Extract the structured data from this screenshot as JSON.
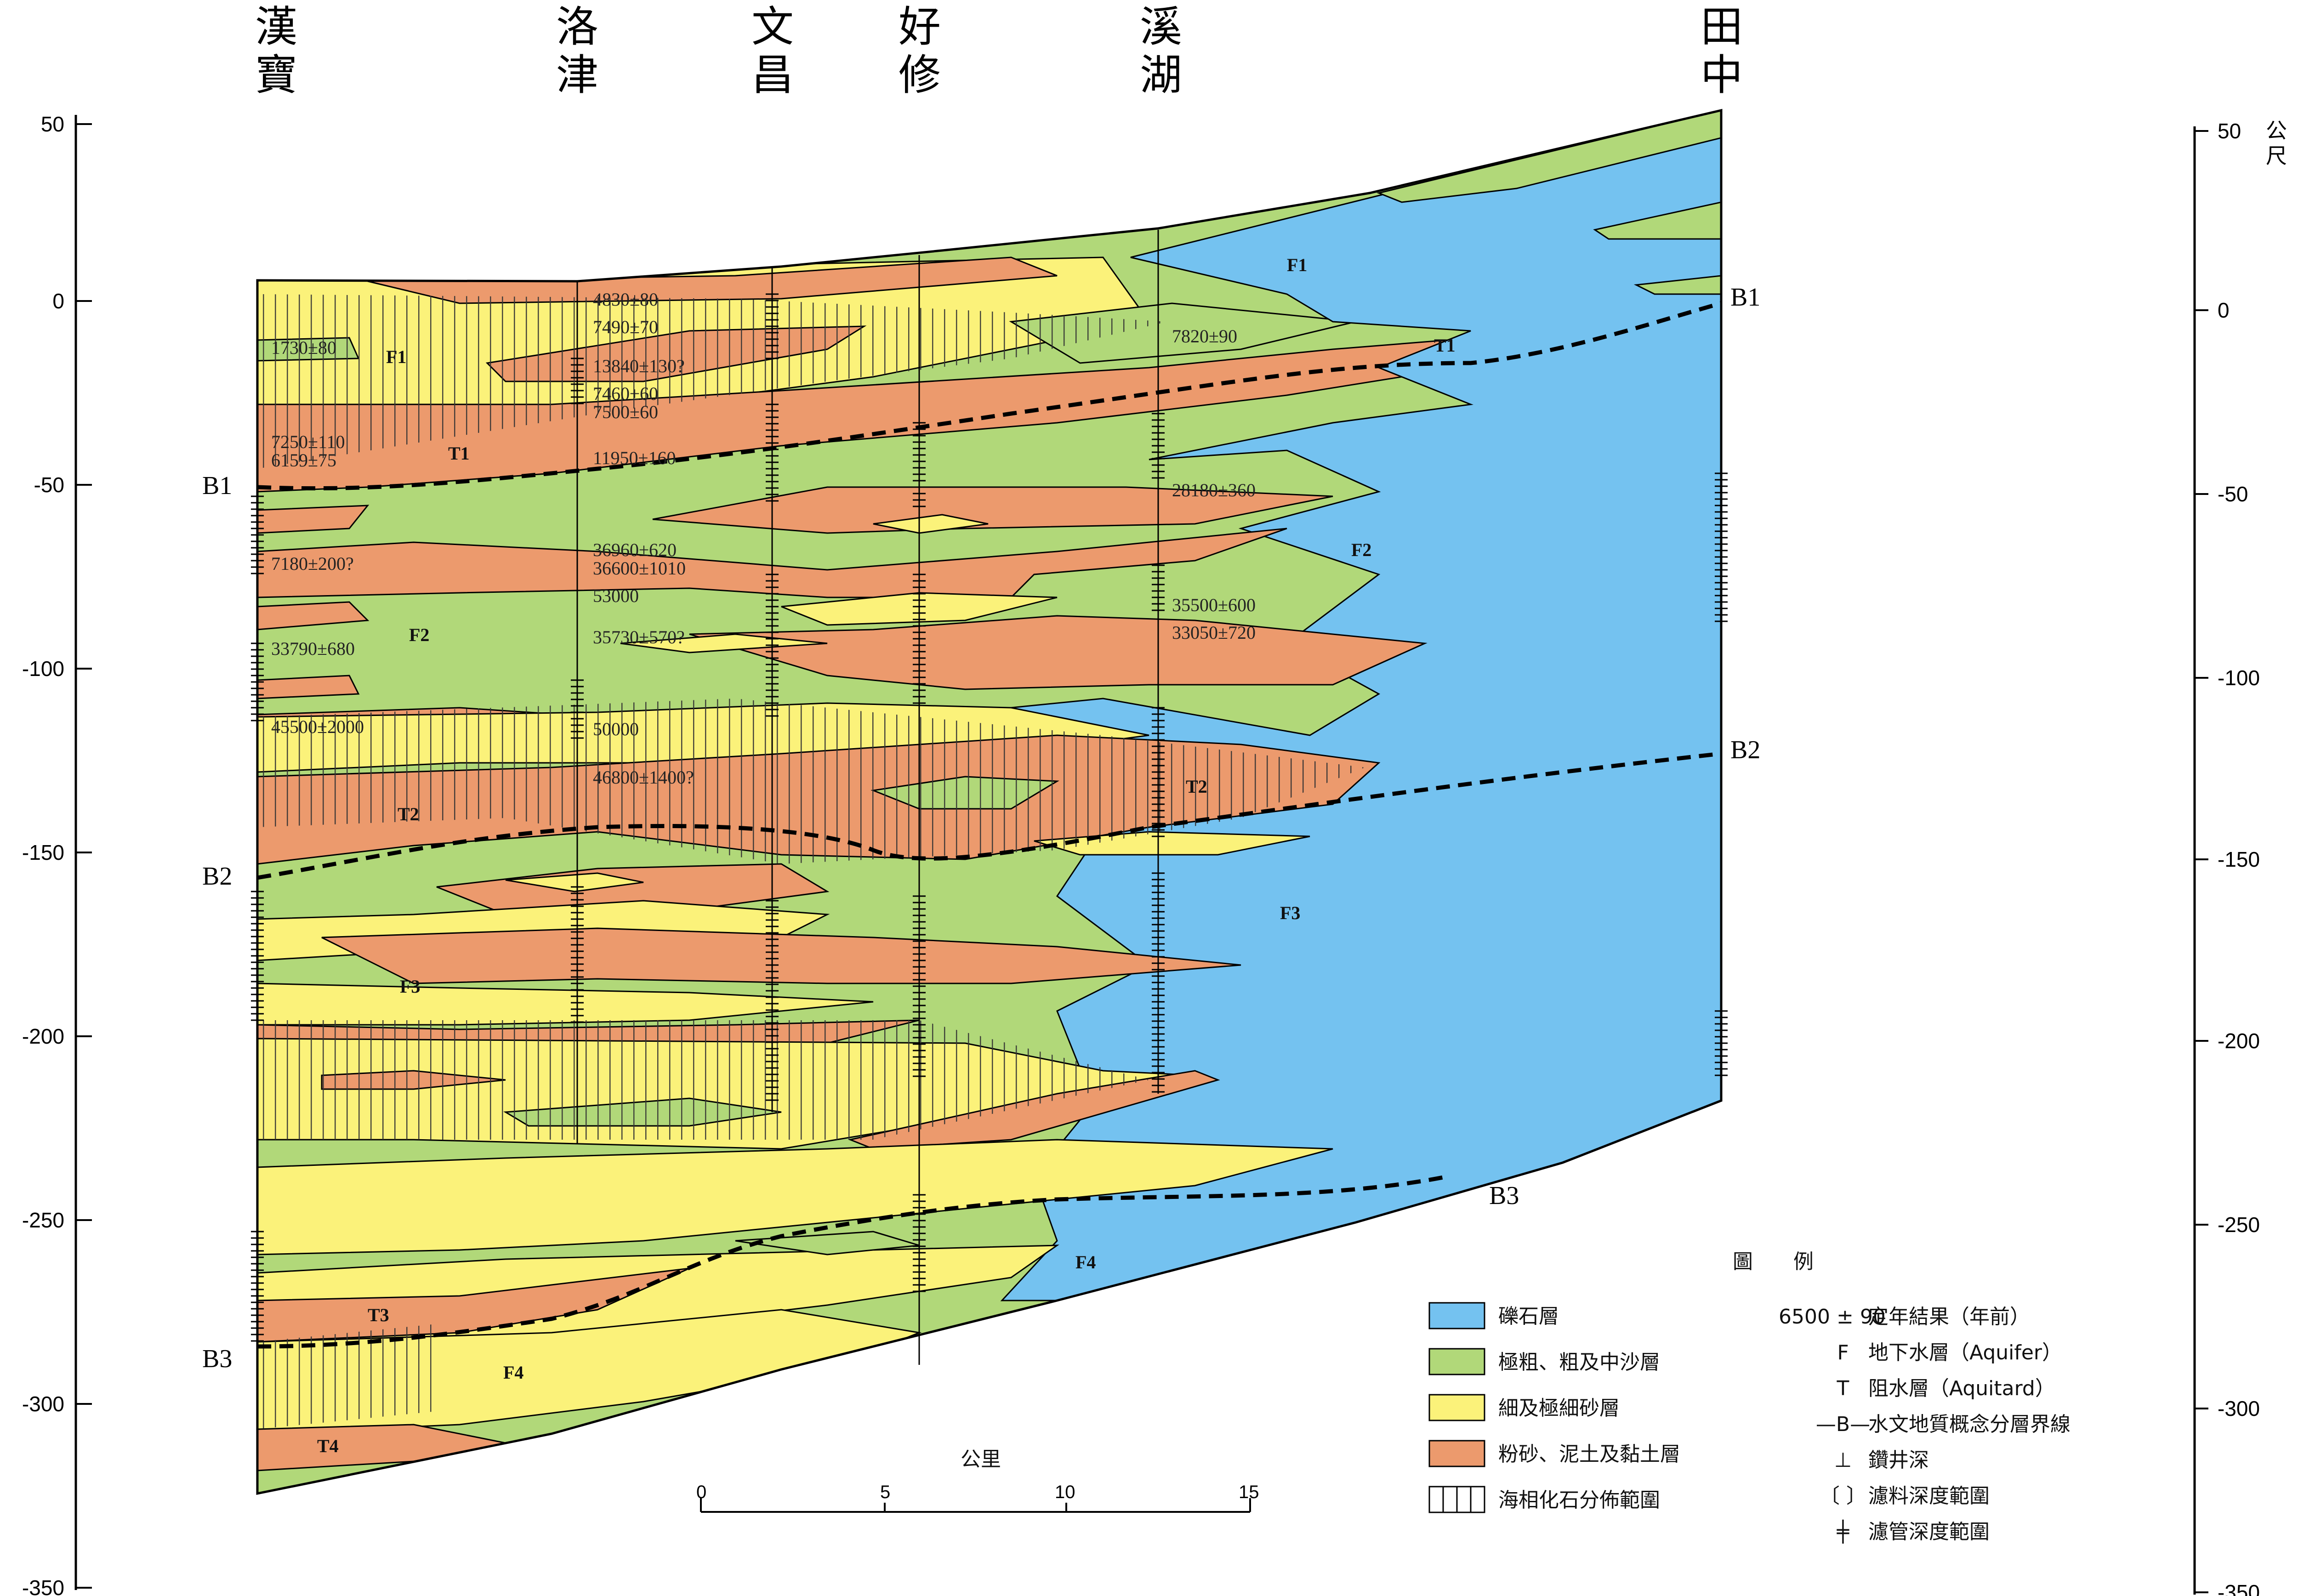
{
  "stations": [
    {
      "id": "hanbao",
      "name": "漢寶"
    },
    {
      "id": "luojin",
      "name": "洛津"
    },
    {
      "id": "wenchang",
      "name": "文昌"
    },
    {
      "id": "haoxiu",
      "name": "好修"
    },
    {
      "id": "xihu",
      "name": "溪湖"
    },
    {
      "id": "tianzhong",
      "name": "田中"
    }
  ],
  "axis": {
    "unit": "公尺",
    "ticks": [
      "50",
      "0",
      "-50",
      "-100",
      "-150",
      "-200",
      "-250",
      "-300",
      "-350"
    ]
  },
  "units": [
    {
      "id": "F1",
      "label": "F1"
    },
    {
      "id": "F1b",
      "label": "F1"
    },
    {
      "id": "T1",
      "label": "T1"
    },
    {
      "id": "T1b",
      "label": "T1"
    },
    {
      "id": "F2",
      "label": "F2"
    },
    {
      "id": "F2b",
      "label": "F2"
    },
    {
      "id": "T2",
      "label": "T2"
    },
    {
      "id": "T2b",
      "label": "T2"
    },
    {
      "id": "F3",
      "label": "F3"
    },
    {
      "id": "F3b",
      "label": "F3"
    },
    {
      "id": "F4",
      "label": "F4"
    },
    {
      "id": "F4b",
      "label": "F4"
    },
    {
      "id": "T3",
      "label": "T3"
    },
    {
      "id": "T4",
      "label": "T4"
    }
  ],
  "boundaries": [
    {
      "id": "B1L",
      "label": "B1"
    },
    {
      "id": "B1R",
      "label": "B1"
    },
    {
      "id": "B2L",
      "label": "B2"
    },
    {
      "id": "B2R",
      "label": "B2"
    },
    {
      "id": "B3L",
      "label": "B3"
    },
    {
      "id": "B3R",
      "label": "B3"
    }
  ],
  "dates": [
    "1730±80",
    "7250±110",
    "6159±75",
    "7180±200?",
    "33790±680",
    "45500±2000",
    "4830±80",
    "7490±70",
    "13840±130?",
    "7460±60",
    "7500±60",
    "11950±160",
    "36960±620",
    "36600±1010",
    "53000",
    "35730±570?",
    "50000",
    "46800±1400?",
    "7820±90",
    "28180±360",
    "35500±600",
    "33050±720"
  ],
  "scale": {
    "title": "公里",
    "ticks": [
      "0",
      "5",
      "10",
      "15"
    ]
  },
  "legend": {
    "title": "圖　　例",
    "swatches": [
      {
        "label": "礫石層",
        "color": "#74c2f0"
      },
      {
        "label": "極粗、粗及中沙層",
        "color": "#b1d879"
      },
      {
        "label": "細及極細砂層",
        "color": "#fbf27a"
      },
      {
        "label": "粉砂、泥土及黏土層",
        "color": "#ec9a6d"
      },
      {
        "label": "海相化石分佈範圍",
        "color": "#ffffff"
      }
    ],
    "symbols": [
      {
        "sym": "6500 ± 90",
        "text": "定年結果（年前）"
      },
      {
        "sym": "F",
        "text": "地下水層（Aquifer）"
      },
      {
        "sym": "T",
        "text": "阻水層（Aquitard）"
      },
      {
        "sym": "—B—",
        "text": "水文地質概念分層界線"
      },
      {
        "sym": "⊥",
        "text": "鑽井深"
      },
      {
        "sym": "〔 〕",
        "text": "濾料深度範圍"
      },
      {
        "sym": "╪",
        "text": "濾管深度範圍"
      }
    ]
  },
  "colors": {
    "gravel": "#74c2f0",
    "coarse_sand": "#b1d879",
    "fine_sand": "#fbf27a",
    "silt_clay": "#ec9a6d"
  }
}
